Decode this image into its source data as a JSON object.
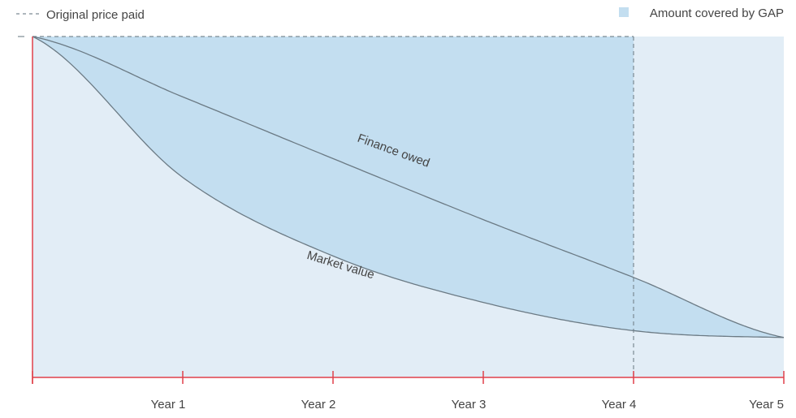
{
  "chart_data": {
    "type": "area",
    "x": [
      0,
      1,
      2,
      3,
      4,
      5
    ],
    "x_tick_labels": [
      "",
      "Year 1",
      "Year 2",
      "Year 3",
      "Year 4",
      "Year 5"
    ],
    "series": [
      {
        "name": "Finance owed",
        "values": [
          100,
          81.4,
          62.4,
          43.6,
          25.8,
          7.3
        ]
      },
      {
        "name": "Market value",
        "values": [
          100,
          56.6,
          32.4,
          18.1,
          9.4,
          7.3
        ]
      }
    ],
    "original_price": 100,
    "gap_end_x": 4,
    "ylim": [
      -5,
      100
    ],
    "legend": {
      "original_price_label": "Original price paid",
      "gap_label": "Amount covered by GAP"
    },
    "curve_labels": {
      "finance": "Finance owed",
      "market": "Market value"
    },
    "colors": {
      "background_fill": "#e2edf6",
      "gap_fill": "#c3def0",
      "axis": "#e0404a",
      "line": "#6b7a84",
      "dashed": "#7c8a93",
      "text": "#444444"
    }
  }
}
